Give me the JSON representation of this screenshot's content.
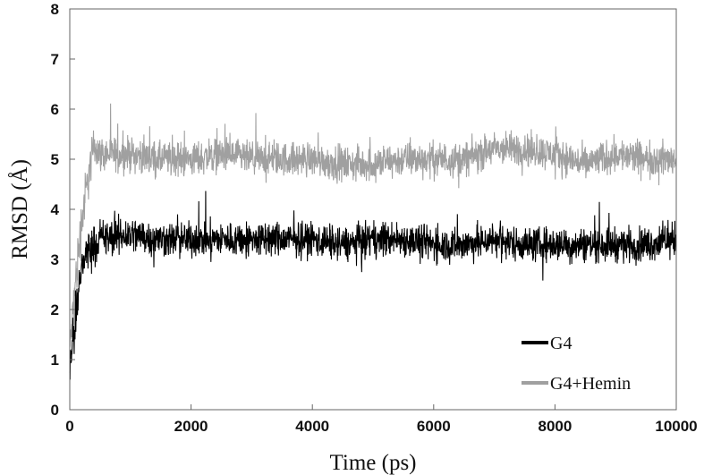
{
  "chart_data": {
    "type": "line",
    "title": "",
    "xlabel": "Time (ps)",
    "ylabel": "RMSD (Å)",
    "xlim": [
      0,
      10000
    ],
    "ylim": [
      0,
      8
    ],
    "xticks": [
      0,
      2000,
      4000,
      6000,
      8000,
      10000
    ],
    "yticks": [
      0,
      1,
      2,
      3,
      4,
      5,
      6,
      7,
      8
    ],
    "grid": false,
    "legend_position": "bottom-right",
    "series": [
      {
        "name": "G4",
        "color": "#000000",
        "x": [
          0,
          100,
          200,
          300,
          400,
          500,
          1000,
          1500,
          2000,
          2500,
          3000,
          3500,
          4000,
          4500,
          5000,
          5500,
          6000,
          6500,
          7000,
          7500,
          8000,
          8500,
          9000,
          9500,
          10000
        ],
        "y": [
          0.9,
          1.8,
          2.9,
          3.2,
          3.3,
          3.4,
          3.5,
          3.4,
          3.4,
          3.4,
          3.4,
          3.4,
          3.4,
          3.3,
          3.4,
          3.4,
          3.3,
          3.3,
          3.4,
          3.3,
          3.3,
          3.3,
          3.3,
          3.3,
          3.4
        ],
        "band": [
          0.45,
          0.8,
          0.7,
          0.6,
          0.55,
          0.55,
          0.55,
          0.5,
          0.5,
          0.5,
          0.5,
          0.5,
          0.5,
          0.5,
          0.5,
          0.5,
          0.5,
          0.5,
          0.5,
          0.5,
          0.5,
          0.5,
          0.5,
          0.5,
          0.5
        ]
      },
      {
        "name": "G4+Hemin",
        "color": "#a0a0a0",
        "x": [
          0,
          100,
          200,
          300,
          400,
          500,
          1000,
          1500,
          2000,
          2500,
          3000,
          3500,
          4000,
          4500,
          5000,
          5500,
          6000,
          6500,
          7000,
          7500,
          8000,
          8500,
          9000,
          9500,
          10000
        ],
        "y": [
          1.2,
          2.6,
          3.8,
          4.6,
          5.3,
          5.1,
          5.1,
          5.0,
          5.0,
          5.1,
          5.0,
          5.0,
          5.0,
          4.9,
          4.9,
          5.0,
          5.0,
          5.0,
          5.2,
          5.2,
          5.1,
          4.9,
          5.1,
          5.0,
          5.0
        ],
        "band": [
          0.5,
          0.8,
          0.8,
          0.7,
          0.55,
          0.5,
          0.5,
          0.5,
          0.5,
          0.5,
          0.5,
          0.5,
          0.5,
          0.5,
          0.5,
          0.5,
          0.5,
          0.5,
          0.5,
          0.5,
          0.5,
          0.5,
          0.5,
          0.5,
          0.5
        ]
      }
    ]
  }
}
